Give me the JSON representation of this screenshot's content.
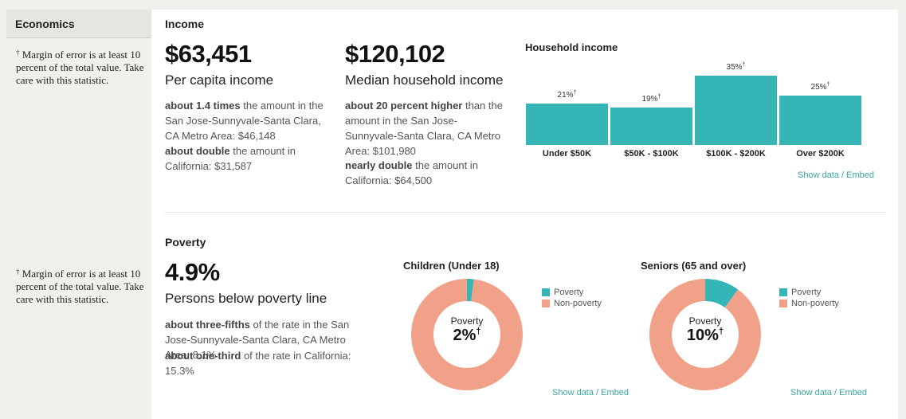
{
  "sidebar": {
    "section": "Economics",
    "notes": [
      {
        "dagger": "†",
        "text": " Margin of error is at least 10 percent of the total value. Take care with this statistic."
      },
      {
        "dagger": "†",
        "text": " Margin of error is at least 10 percent of the total value. Take care with this statistic."
      }
    ]
  },
  "income": {
    "title": "Income",
    "per_capita": {
      "value": "$63,451",
      "label": "Per capita income",
      "cmp1_bold": "about 1.4 times",
      "cmp1_rest": " the amount in the San Jose-Sunnyvale-Santa Clara, CA Metro Area: $46,148",
      "cmp2_bold": "about double",
      "cmp2_rest": " the amount in California: $31,587"
    },
    "median": {
      "value": "$120,102",
      "label": "Median household income",
      "cmp1_bold": "about 20 percent higher",
      "cmp1_rest": " than the amount in the San Jose-Sunnyvale-Santa Clara, CA Metro Area: $101,980",
      "cmp2_bold": "nearly double",
      "cmp2_rest": " the amount in California: $64,500"
    },
    "links": "Show data / Embed"
  },
  "chart_data": [
    {
      "type": "bar",
      "title": "Household income",
      "categories": [
        "Under $50K",
        "$50K - $100K",
        "$100K - $200K",
        "Over $200K"
      ],
      "values": [
        21,
        19,
        35,
        25
      ],
      "value_labels": [
        "21%",
        "19%",
        "35%",
        "25%"
      ],
      "dagger": "†",
      "color": "#35b5b5"
    },
    {
      "type": "pie",
      "title": "Children (Under 18)",
      "categories": [
        "Poverty",
        "Non-poverty"
      ],
      "values": [
        2,
        98
      ],
      "colors": [
        "#35b5b5",
        "#f0a187"
      ],
      "center_label": "Poverty",
      "center_value": "2%",
      "dagger": "†"
    },
    {
      "type": "pie",
      "title": "Seniors (65 and over)",
      "categories": [
        "Poverty",
        "Non-poverty"
      ],
      "values": [
        10,
        90
      ],
      "colors": [
        "#35b5b5",
        "#f0a187"
      ],
      "center_label": "Poverty",
      "center_value": "10%",
      "dagger": "†"
    }
  ],
  "poverty": {
    "title": "Poverty",
    "value": "4.9%",
    "label": "Persons below poverty line",
    "cmp1_bold": "about three-fifths",
    "cmp1_rest": " of the rate in the San Jose-Sunnyvale-Santa Clara, CA Metro Area: 8.1%",
    "cmp2_bold": "about one-third",
    "cmp2_rest": " of the rate in California: 15.3%",
    "links": "Show data / Embed"
  }
}
